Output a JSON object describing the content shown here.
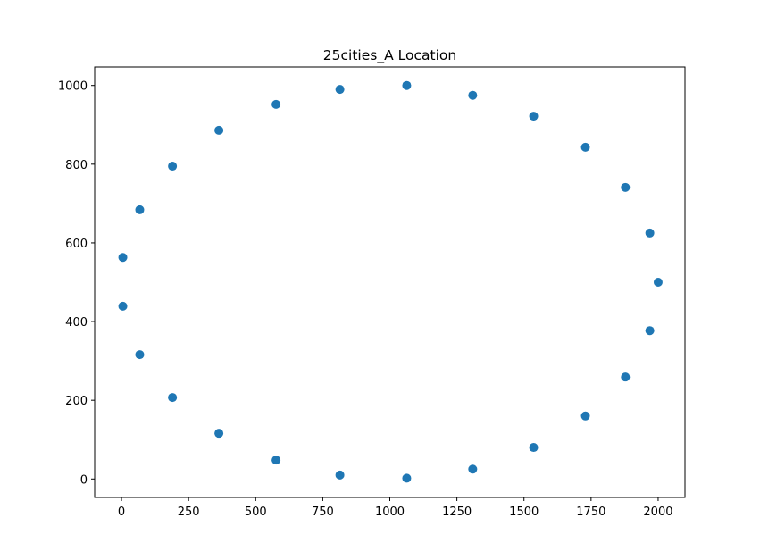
{
  "chart_data": {
    "type": "scatter",
    "title": "25cities_A Location",
    "xlabel": "",
    "ylabel": "",
    "xlim": [
      -100,
      2100
    ],
    "ylim": [
      -47,
      1047
    ],
    "xticks": [
      0,
      250,
      500,
      750,
      1000,
      1250,
      1500,
      1750,
      2000
    ],
    "yticks": [
      0,
      200,
      400,
      600,
      800,
      1000
    ],
    "grid": false,
    "marker_color": "#1f77b4",
    "points": [
      {
        "x": 2000,
        "y": 500
      },
      {
        "x": 1969,
        "y": 625
      },
      {
        "x": 1878,
        "y": 741
      },
      {
        "x": 1729,
        "y": 843
      },
      {
        "x": 1536,
        "y": 922
      },
      {
        "x": 1309,
        "y": 975
      },
      {
        "x": 1063,
        "y": 1000
      },
      {
        "x": 814,
        "y": 990
      },
      {
        "x": 576,
        "y": 952
      },
      {
        "x": 363,
        "y": 886
      },
      {
        "x": 190,
        "y": 795
      },
      {
        "x": 68,
        "y": 684
      },
      {
        "x": 5,
        "y": 563
      },
      {
        "x": 5,
        "y": 439
      },
      {
        "x": 68,
        "y": 316
      },
      {
        "x": 190,
        "y": 207
      },
      {
        "x": 363,
        "y": 116
      },
      {
        "x": 576,
        "y": 48
      },
      {
        "x": 814,
        "y": 10
      },
      {
        "x": 1063,
        "y": 2
      },
      {
        "x": 1309,
        "y": 25
      },
      {
        "x": 1536,
        "y": 80
      },
      {
        "x": 1729,
        "y": 160
      },
      {
        "x": 1878,
        "y": 259
      },
      {
        "x": 1969,
        "y": 377
      }
    ]
  }
}
